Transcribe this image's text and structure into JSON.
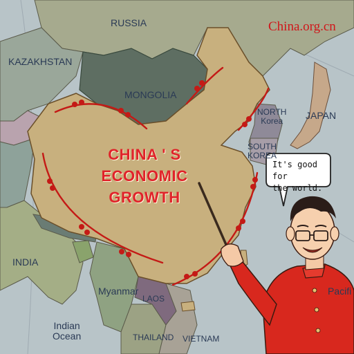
{
  "brand": {
    "name": "China.org.cn"
  },
  "headline": {
    "line1": "CHINA ' S",
    "line2": "ECONOMIC",
    "line3": "GROWTH"
  },
  "speech_bubble": {
    "line1": "It's good for",
    "line2": "the world."
  },
  "regions": {
    "russia": "RUSSIA",
    "kazakhstan": "KAZAKHSTAN",
    "mongolia": "MONGOLIA",
    "north_korea_line1": "NORTH",
    "north_korea_line2": "Korea",
    "south_korea_line1": "SOUTH",
    "south_korea_line2": "KOREA",
    "japan": "JAPAN",
    "india": "INDIA",
    "myanmar": "Myanmar",
    "laos": "LAOS",
    "thailand": "THAILAND",
    "vietnam": "VIETNAM",
    "indian_ocean_line1": "Indian",
    "indian_ocean_line2": "Ocean",
    "pacific": "Pacifi"
  },
  "colors": {
    "sea": "#b8c4c8",
    "china": "#c8b07e",
    "mongolia": "#5e6e62",
    "growth_line": "#c41a16",
    "headline": "#e0232a",
    "brand": "#d0161a"
  }
}
